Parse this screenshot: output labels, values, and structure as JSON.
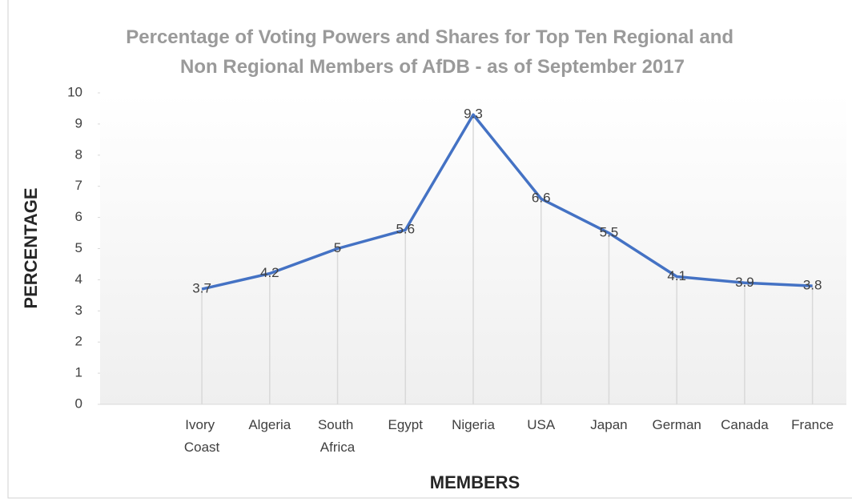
{
  "chart_data": {
    "type": "line",
    "title": "Percentage of Voting Powers and Shares for Top Ten Regional and Non Regional Members of AfDB - as of September 2017",
    "x_label": "MEMBERS",
    "y_label": "PERCENTAGE",
    "categories": [
      null,
      "Ivory Coast",
      "Algeria",
      "South Africa",
      "Egypt",
      "Nigeria",
      "USA",
      "Japan",
      "German",
      "Canada",
      "France"
    ],
    "series": [
      {
        "name": "Percentage",
        "color": "#4472c4",
        "values": [
          null,
          3.7,
          4.2,
          5,
          5.6,
          9.3,
          6.6,
          5.5,
          4.1,
          3.9,
          3.8
        ]
      }
    ],
    "ylim": [
      0,
      10
    ],
    "yticks": [
      0,
      1,
      2,
      3,
      4,
      5,
      6,
      7,
      8,
      9,
      10
    ],
    "drop_lines": true,
    "data_labels": true
  }
}
